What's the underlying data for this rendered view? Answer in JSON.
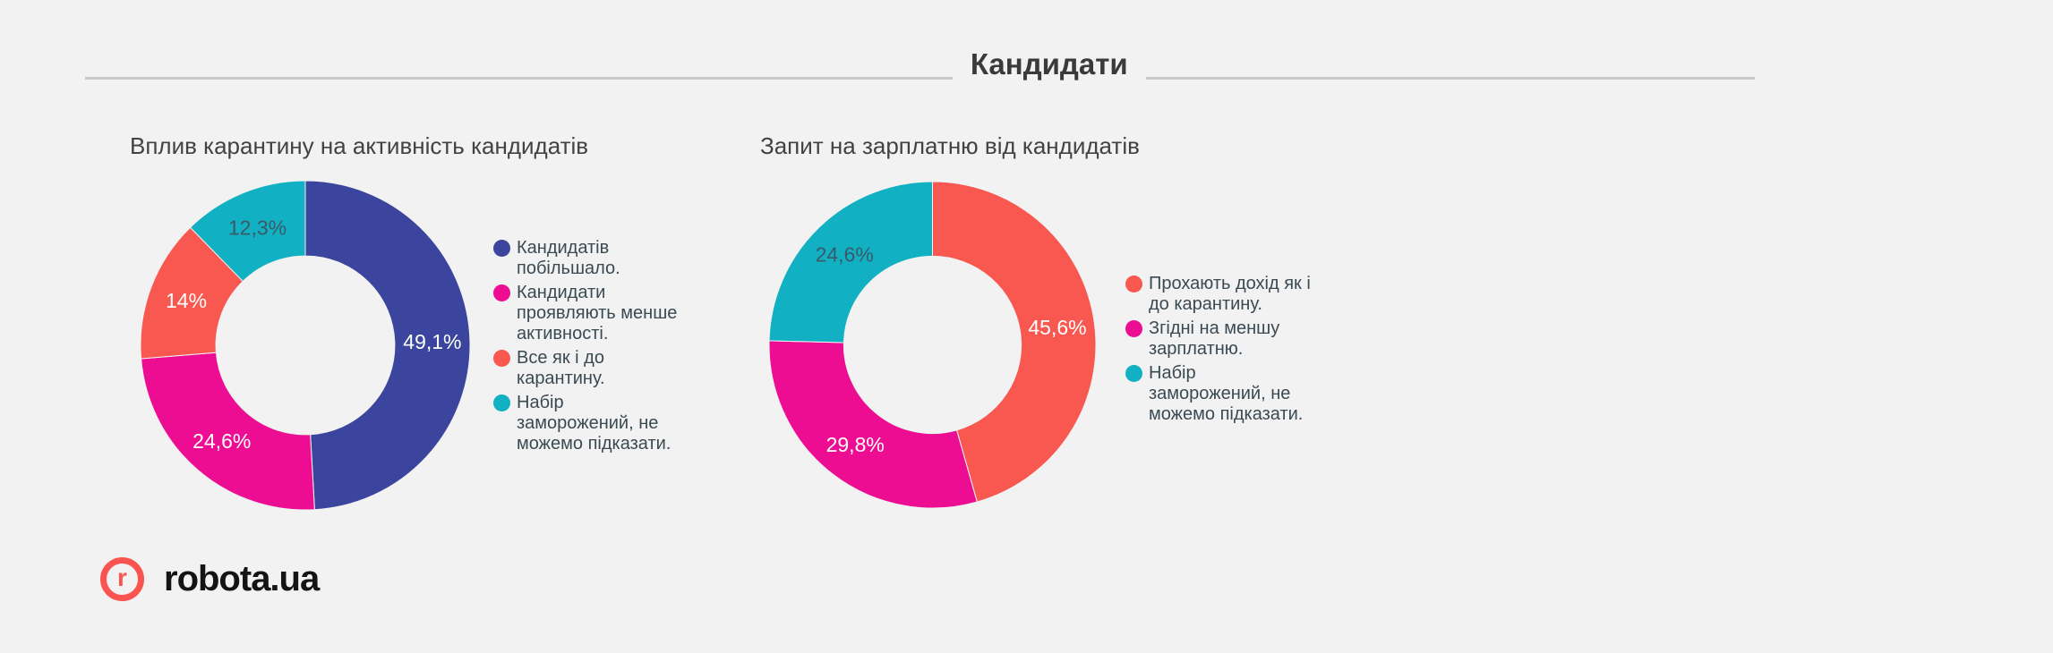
{
  "page": {
    "background": "#f2f2f2",
    "divider_color": "#c9c9c9"
  },
  "header": {
    "title": "Кандидати"
  },
  "chart_data": [
    {
      "type": "pie",
      "subtype": "donut",
      "title": "Вплив карантину на активність кандидатів",
      "legend_position": "right",
      "direction": "clockwise",
      "start_angle_deg": 0,
      "labels": [
        "Кандидатів побільшало.",
        "Кандидати проявляють менше активності.",
        "Все як і до карантину.",
        "Набір заморожений, не можемо підказати."
      ],
      "legend_wrap": [
        "Кандидатів\nпобільшало.",
        "Кандидати\nпроявляють менше\nактивності.",
        "Все як і до\nкарантину.",
        "Набір\nзаморожений, не\nможемо підказати."
      ],
      "values": [
        49.1,
        24.6,
        14,
        12.3
      ],
      "value_labels": [
        "49,1%",
        "24,6%",
        "14%",
        "12,3%"
      ],
      "colors": [
        "#3b459e",
        "#ec0d93",
        "#f95851",
        "#11b1c3"
      ],
      "value_label_colors": [
        "#ffffff",
        "#ffffff",
        "#ffffff",
        "#3a5a68"
      ]
    },
    {
      "type": "pie",
      "subtype": "donut",
      "title": "Запит на зарплатню від кандидатів",
      "legend_position": "right",
      "direction": "clockwise",
      "start_angle_deg": 0,
      "labels": [
        "Прохають дохід як і до карантину.",
        "Згідні на меншу зарплатню.",
        "Набір заморожений, не можемо підказати."
      ],
      "legend_wrap": [
        "Прохають дохід як і\nдо карантину.",
        "Згідні на меншу\nзарплатню.",
        "Набір\nзаморожений, не\nможемо підказати."
      ],
      "values": [
        45.6,
        29.8,
        24.6
      ],
      "value_labels": [
        "45,6%",
        "29,8%",
        "24,6%"
      ],
      "colors": [
        "#f95851",
        "#ec0d93",
        "#11b1c3"
      ],
      "value_label_colors": [
        "#ffffff",
        "#ffffff",
        "#3a5a68"
      ]
    }
  ],
  "logo": {
    "mark": "r",
    "text": "robota.ua",
    "accent_color": "#f9544f",
    "text_color": "#141414"
  }
}
